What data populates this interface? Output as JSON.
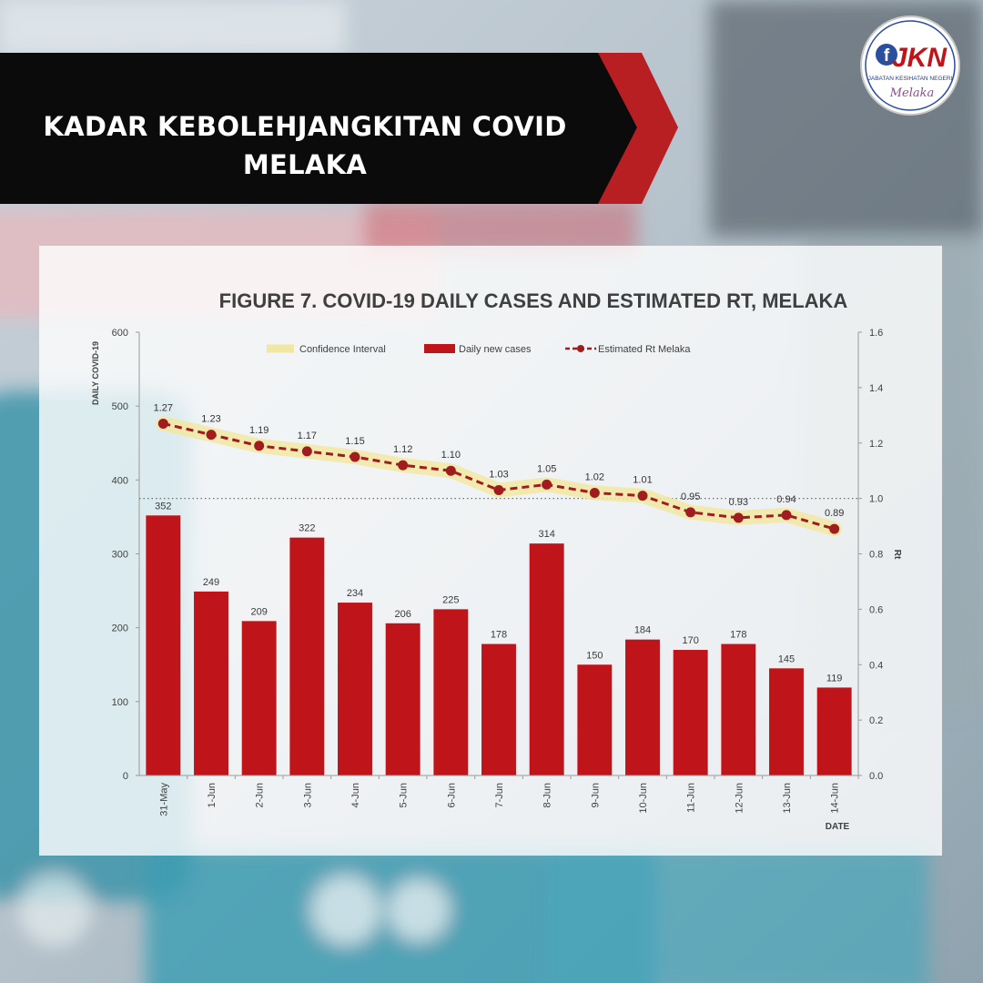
{
  "banner": {
    "title_line1": "KADAR KEBOLEHJANGKITAN COVID",
    "title_line2": "MELAKA"
  },
  "logo": {
    "text": "JKN",
    "subtitle": "JABATAN KESIHATAN NEGERI",
    "script": "Melaka"
  },
  "colors": {
    "bar": "#c0141b",
    "line": "#a01c1e",
    "ci": "#f2e7a2",
    "banner": "#0b0b0b",
    "accent": "#b81f23"
  },
  "chart_data": {
    "type": "bar",
    "title": "FIGURE 7. COVID-19 DAILY CASES AND ESTIMATED RT, MELAKA",
    "xlabel": "DATE",
    "ylabel": "DAILY COVID-19",
    "y2label": "Rt",
    "ylim": [
      0,
      600
    ],
    "y2lim": [
      0.0,
      1.6
    ],
    "yticks": [
      "0",
      "100",
      "200",
      "300",
      "400",
      "500",
      "600"
    ],
    "y2ticks": [
      "0.0",
      "0.2",
      "0.4",
      "0.6",
      "0.8",
      "1.0",
      "1.2",
      "1.4",
      "1.6"
    ],
    "legend": [
      "Confidence Interval",
      "Daily new cases",
      "Estimated Rt Melaka"
    ],
    "legend_position": "top",
    "reference_line": 1.0,
    "categories": [
      "31-May",
      "1-Jun",
      "2-Jun",
      "3-Jun",
      "4-Jun",
      "5-Jun",
      "6-Jun",
      "7-Jun",
      "8-Jun",
      "9-Jun",
      "10-Jun",
      "11-Jun",
      "12-Jun",
      "13-Jun",
      "14-Jun"
    ],
    "series": [
      {
        "name": "Daily new cases",
        "type": "bar",
        "axis": "left",
        "values": [
          352,
          249,
          209,
          322,
          234,
          206,
          225,
          178,
          314,
          150,
          184,
          170,
          178,
          145,
          119
        ]
      },
      {
        "name": "Estimated Rt Melaka",
        "type": "line",
        "axis": "right",
        "values": [
          1.27,
          1.23,
          1.19,
          1.17,
          1.15,
          1.12,
          1.1,
          1.03,
          1.05,
          1.02,
          1.01,
          0.95,
          0.93,
          0.94,
          0.89
        ],
        "labels": [
          "1.27",
          "1.23",
          "1.19",
          "1.17",
          "1.15",
          "1.12",
          "1.10",
          "1.03",
          "1.05",
          "1.02",
          "1.01",
          "0.95",
          "0.93",
          "0.94",
          "0.89"
        ]
      }
    ]
  }
}
